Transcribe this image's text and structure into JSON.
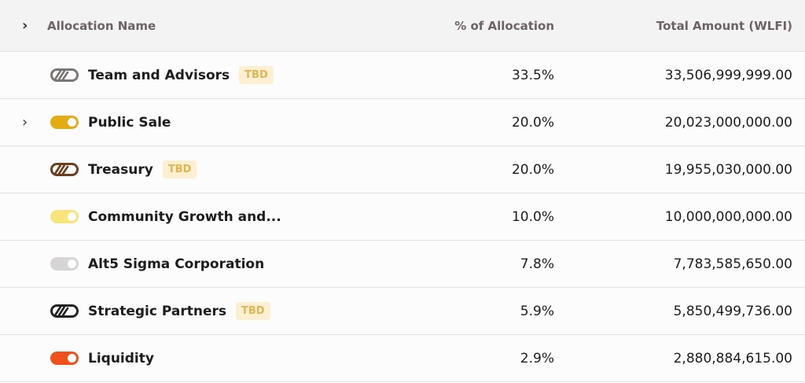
{
  "header": {
    "name": "Allocation Name",
    "percent": "% of Allocation",
    "amount": "Total Amount (WLFI)"
  },
  "rows": [
    {
      "name": "Team and Advisors",
      "badge": "TBD",
      "percent": "33.5%",
      "amount": "33,506,999,999.00",
      "icon": "hatched-toggle",
      "color": "#7a7675",
      "expandable": false
    },
    {
      "name": "Public Sale",
      "badge": "",
      "percent": "20.0%",
      "amount": "20,023,000,000.00",
      "icon": "toggle",
      "color": "#e2ac12",
      "expandable": true
    },
    {
      "name": "Treasury",
      "badge": "TBD",
      "percent": "20.0%",
      "amount": "19,955,030,000.00",
      "icon": "hatched-toggle",
      "color": "#6b3e1e",
      "expandable": false
    },
    {
      "name": "Community Growth and...",
      "badge": "",
      "percent": "10.0%",
      "amount": "10,000,000,000.00",
      "icon": "toggle",
      "color": "#f8e47a",
      "expandable": false
    },
    {
      "name": "Alt5 Sigma Corporation",
      "badge": "",
      "percent": "7.8%",
      "amount": "7,783,585,650.00",
      "icon": "toggle",
      "color": "#d6d4d4",
      "expandable": false
    },
    {
      "name": "Strategic Partners",
      "badge": "TBD",
      "percent": "5.9%",
      "amount": "5,850,499,736.00",
      "icon": "hatched-toggle",
      "color": "#222222",
      "expandable": false
    },
    {
      "name": "Liquidity",
      "badge": "",
      "percent": "2.9%",
      "amount": "2,880,884,615.00",
      "icon": "toggle",
      "color": "#f0501a",
      "expandable": false
    }
  ]
}
